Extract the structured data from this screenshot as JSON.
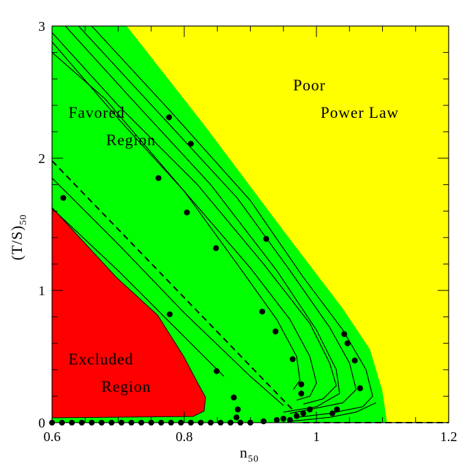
{
  "chart_data": {
    "type": "scatter",
    "x_label": {
      "text": "n",
      "sub": "50"
    },
    "y_label": {
      "text": "(T/S)",
      "sub": "50"
    },
    "xlim": [
      0.6,
      1.2
    ],
    "ylim": [
      0,
      3
    ],
    "xticks": [
      0.6,
      0.8,
      1,
      1.2
    ],
    "yticks": [
      0,
      1,
      2,
      3
    ],
    "xminorticks": [
      0.65,
      0.7,
      0.75,
      0.85,
      0.9,
      0.95,
      1.05,
      1.1,
      1.15
    ],
    "yminorticks": [
      0.2,
      0.4,
      0.6,
      0.8,
      1.2,
      1.4,
      1.6,
      1.8,
      2.2,
      2.4,
      2.6,
      2.8
    ],
    "annotations": [
      "Favored",
      "Region",
      "Poor",
      "Power Law",
      "Excluded",
      "Region"
    ],
    "series": [
      {
        "type": "line",
        "color": "#000000",
        "x": [
          0.66,
          0.78,
          0.9,
          0.98,
          1.04,
          1.075,
          1.085,
          1.07,
          1.02,
          0.97
        ],
        "values": [
          3,
          2.35,
          1.68,
          1.1,
          0.7,
          0.4,
          0.2,
          0.12,
          0.07,
          0.04
        ]
      },
      {
        "type": "line",
        "color": "#000000",
        "x": [
          0.64,
          0.76,
          0.88,
          0.96,
          1.02,
          1.05,
          1.06,
          1.04,
          0.99,
          0.96
        ],
        "values": [
          3,
          2.35,
          1.7,
          1.15,
          0.72,
          0.45,
          0.25,
          0.15,
          0.1,
          0.07
        ]
      },
      {
        "type": "line",
        "color": "#000000",
        "x": [
          0.62,
          0.72,
          0.84,
          0.94,
          1.0,
          1.03,
          1.035,
          1.0,
          0.95
        ],
        "values": [
          3,
          2.45,
          1.8,
          1.15,
          0.7,
          0.4,
          0.22,
          0.12,
          0.08
        ]
      },
      {
        "type": "line",
        "color": "#000000",
        "x": [
          0.6,
          0.7,
          0.82,
          0.92,
          0.99,
          1.02,
          1.03,
          1.01,
          0.98
        ],
        "values": [
          2.95,
          2.4,
          1.8,
          1.2,
          0.75,
          0.45,
          0.28,
          0.18,
          0.14
        ]
      },
      {
        "type": "line",
        "color": "#000000",
        "x": [
          0.6,
          0.7,
          0.8,
          0.9,
          0.96,
          0.99,
          1.0,
          0.99,
          0.97
        ],
        "values": [
          2.88,
          2.3,
          1.75,
          1.17,
          0.78,
          0.5,
          0.3,
          0.2,
          0.17
        ]
      },
      {
        "type": "line",
        "color": "#000000",
        "x": [
          0.6,
          0.68,
          0.8,
          0.88,
          0.94,
          0.97,
          0.975,
          0.965
        ],
        "values": [
          2.8,
          2.45,
          1.75,
          1.2,
          0.78,
          0.5,
          0.32,
          0.25
        ]
      },
      {
        "type": "line",
        "color": "#000000",
        "x": [
          0.6,
          0.7,
          0.8,
          0.9,
          0.95
        ],
        "values": [
          1.85,
          1.35,
          0.83,
          0.35,
          0.13
        ]
      },
      {
        "type": "line",
        "color": "#000000",
        "x": [
          0.6,
          0.7,
          0.8,
          0.86
        ],
        "values": [
          1.62,
          1.15,
          0.65,
          0.35
        ]
      },
      {
        "type": "line",
        "color": "#000000",
        "x": [
          0.96,
          1.02,
          1.06,
          1.09
        ],
        "values": [
          0.01,
          0.04,
          0.08,
          0.15
        ]
      },
      {
        "type": "line",
        "color": "#000000",
        "dash": true,
        "x": [
          0.6,
          0.975
        ],
        "values": [
          1.98,
          0.04
        ]
      },
      {
        "type": "line",
        "color": "#000000",
        "dash": true,
        "x": [
          0.98,
          1.2
        ],
        "values": [
          0,
          0
        ]
      },
      {
        "type": "scatter",
        "color": "#000000",
        "x": [
          0.617,
          0.777,
          0.81,
          0.761,
          0.804,
          0.848,
          0.924,
          0.918,
          0.938,
          0.964,
          0.778,
          0.849,
          0.875,
          0.881,
          0.879,
          0.977,
          0.977,
          1.042,
          1.047,
          1.058,
          1.066,
          1.031,
          1.024,
          0.6,
          0.615,
          0.63,
          0.645,
          0.66,
          0.675,
          0.69,
          0.705,
          0.72,
          0.735,
          0.75,
          0.765,
          0.78,
          0.795,
          0.81,
          0.825,
          0.84,
          0.855,
          0.87,
          0.885,
          0.9,
          0.92,
          0.94,
          0.95,
          0.96,
          0.97,
          0.98,
          0.99
        ],
        "values": [
          1.7,
          2.31,
          2.11,
          1.85,
          1.59,
          1.32,
          1.39,
          0.84,
          0.69,
          0.48,
          0.82,
          0.39,
          0.19,
          0.1,
          0.04,
          0.29,
          0.22,
          0.67,
          0.6,
          0.47,
          0.26,
          0.1,
          0.07,
          0,
          0,
          0,
          0,
          0,
          0,
          0,
          0,
          0,
          0,
          0,
          0,
          0,
          0,
          0,
          0,
          0,
          0,
          0,
          0,
          0,
          0.01,
          0.02,
          0.03,
          0.02,
          0.05,
          0.07,
          0.1
        ]
      }
    ]
  }
}
